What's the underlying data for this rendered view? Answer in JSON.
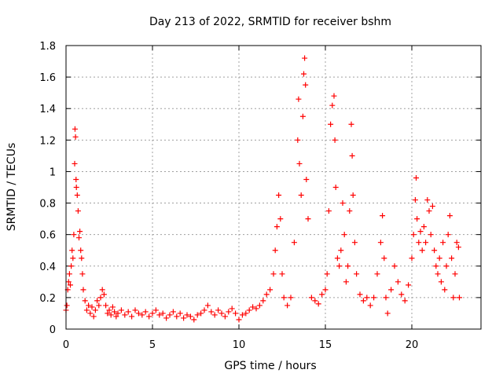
{
  "chart_data": {
    "type": "scatter",
    "title": "Day 213 of 2022, SRMTID for receiver bshm",
    "xlabel": "GPS time / hours",
    "ylabel": "SRMTID / TECUs",
    "xlim": [
      0,
      24
    ],
    "ylim": [
      0,
      1.8
    ],
    "x_ticks": [
      "0",
      "5",
      "10",
      "15",
      "20"
    ],
    "y_ticks": [
      "0",
      "0.2",
      "0.4",
      "0.6",
      "0.8",
      "1",
      "1.2",
      "1.4",
      "1.6",
      "1.8"
    ],
    "grid": true,
    "marker": "plus",
    "series": [
      {
        "color": "#ff0000",
        "points": [
          [
            0.0,
            0.12
          ],
          [
            0.05,
            0.15
          ],
          [
            0.1,
            0.25
          ],
          [
            0.15,
            0.3
          ],
          [
            0.2,
            0.35
          ],
          [
            0.25,
            0.28
          ],
          [
            0.3,
            0.4
          ],
          [
            0.35,
            0.5
          ],
          [
            0.4,
            0.45
          ],
          [
            0.45,
            0.6
          ],
          [
            0.5,
            1.05
          ],
          [
            0.52,
            1.27
          ],
          [
            0.55,
            1.22
          ],
          [
            0.58,
            0.95
          ],
          [
            0.6,
            0.9
          ],
          [
            0.65,
            0.85
          ],
          [
            0.7,
            0.75
          ],
          [
            0.75,
            0.58
          ],
          [
            0.8,
            0.62
          ],
          [
            0.85,
            0.5
          ],
          [
            0.9,
            0.45
          ],
          [
            0.95,
            0.35
          ],
          [
            1.0,
            0.25
          ],
          [
            1.1,
            0.18
          ],
          [
            1.2,
            0.12
          ],
          [
            1.3,
            0.15
          ],
          [
            1.4,
            0.1
          ],
          [
            1.5,
            0.14
          ],
          [
            1.6,
            0.08
          ],
          [
            1.7,
            0.12
          ],
          [
            1.8,
            0.18
          ],
          [
            1.9,
            0.15
          ],
          [
            2.0,
            0.2
          ],
          [
            2.1,
            0.25
          ],
          [
            2.2,
            0.22
          ],
          [
            2.3,
            0.15
          ],
          [
            2.4,
            0.1
          ],
          [
            2.5,
            0.12
          ],
          [
            2.6,
            0.09
          ],
          [
            2.7,
            0.14
          ],
          [
            2.8,
            0.11
          ],
          [
            2.9,
            0.08
          ],
          [
            3.0,
            0.1
          ],
          [
            3.2,
            0.12
          ],
          [
            3.4,
            0.09
          ],
          [
            3.6,
            0.11
          ],
          [
            3.8,
            0.08
          ],
          [
            4.0,
            0.12
          ],
          [
            4.2,
            0.1
          ],
          [
            4.4,
            0.09
          ],
          [
            4.6,
            0.11
          ],
          [
            4.8,
            0.08
          ],
          [
            5.0,
            0.1
          ],
          [
            5.2,
            0.12
          ],
          [
            5.4,
            0.09
          ],
          [
            5.6,
            0.1
          ],
          [
            5.8,
            0.07
          ],
          [
            6.0,
            0.09
          ],
          [
            6.2,
            0.11
          ],
          [
            6.4,
            0.08
          ],
          [
            6.6,
            0.1
          ],
          [
            6.8,
            0.07
          ],
          [
            7.0,
            0.09
          ],
          [
            7.2,
            0.08
          ],
          [
            7.4,
            0.06
          ],
          [
            7.6,
            0.09
          ],
          [
            7.8,
            0.1
          ],
          [
            8.0,
            0.12
          ],
          [
            8.2,
            0.15
          ],
          [
            8.4,
            0.11
          ],
          [
            8.6,
            0.09
          ],
          [
            8.8,
            0.12
          ],
          [
            9.0,
            0.1
          ],
          [
            9.2,
            0.08
          ],
          [
            9.4,
            0.11
          ],
          [
            9.6,
            0.13
          ],
          [
            9.8,
            0.1
          ],
          [
            10.0,
            0.06
          ],
          [
            10.2,
            0.09
          ],
          [
            10.4,
            0.1
          ],
          [
            10.6,
            0.12
          ],
          [
            10.8,
            0.14
          ],
          [
            11.0,
            0.13
          ],
          [
            11.2,
            0.15
          ],
          [
            11.4,
            0.18
          ],
          [
            11.6,
            0.22
          ],
          [
            11.8,
            0.25
          ],
          [
            12.0,
            0.35
          ],
          [
            12.1,
            0.5
          ],
          [
            12.2,
            0.65
          ],
          [
            12.3,
            0.85
          ],
          [
            12.4,
            0.7
          ],
          [
            12.5,
            0.35
          ],
          [
            12.6,
            0.2
          ],
          [
            12.8,
            0.15
          ],
          [
            13.0,
            0.2
          ],
          [
            13.2,
            0.55
          ],
          [
            13.4,
            1.2
          ],
          [
            13.45,
            1.46
          ],
          [
            13.5,
            1.05
          ],
          [
            13.6,
            0.85
          ],
          [
            13.7,
            1.35
          ],
          [
            13.75,
            1.62
          ],
          [
            13.8,
            1.72
          ],
          [
            13.85,
            1.55
          ],
          [
            13.9,
            0.95
          ],
          [
            14.0,
            0.7
          ],
          [
            14.2,
            0.2
          ],
          [
            14.4,
            0.18
          ],
          [
            14.6,
            0.16
          ],
          [
            14.8,
            0.22
          ],
          [
            15.0,
            0.25
          ],
          [
            15.1,
            0.35
          ],
          [
            15.2,
            0.75
          ],
          [
            15.3,
            1.3
          ],
          [
            15.4,
            1.42
          ],
          [
            15.5,
            1.48
          ],
          [
            15.55,
            1.2
          ],
          [
            15.6,
            0.9
          ],
          [
            15.7,
            0.45
          ],
          [
            15.8,
            0.4
          ],
          [
            15.9,
            0.5
          ],
          [
            16.0,
            0.8
          ],
          [
            16.1,
            0.6
          ],
          [
            16.2,
            0.3
          ],
          [
            16.3,
            0.4
          ],
          [
            16.4,
            0.75
          ],
          [
            16.5,
            1.3
          ],
          [
            16.55,
            1.1
          ],
          [
            16.6,
            0.85
          ],
          [
            16.7,
            0.55
          ],
          [
            16.8,
            0.35
          ],
          [
            17.0,
            0.22
          ],
          [
            17.2,
            0.18
          ],
          [
            17.4,
            0.2
          ],
          [
            17.6,
            0.15
          ],
          [
            17.8,
            0.2
          ],
          [
            18.0,
            0.35
          ],
          [
            18.2,
            0.55
          ],
          [
            18.3,
            0.72
          ],
          [
            18.4,
            0.45
          ],
          [
            18.5,
            0.2
          ],
          [
            18.6,
            0.1
          ],
          [
            18.8,
            0.25
          ],
          [
            19.0,
            0.4
          ],
          [
            19.2,
            0.3
          ],
          [
            19.4,
            0.22
          ],
          [
            19.6,
            0.18
          ],
          [
            19.8,
            0.28
          ],
          [
            20.0,
            0.45
          ],
          [
            20.1,
            0.6
          ],
          [
            20.2,
            0.82
          ],
          [
            20.25,
            0.96
          ],
          [
            20.3,
            0.7
          ],
          [
            20.4,
            0.55
          ],
          [
            20.5,
            0.62
          ],
          [
            20.6,
            0.5
          ],
          [
            20.7,
            0.65
          ],
          [
            20.8,
            0.55
          ],
          [
            20.9,
            0.82
          ],
          [
            21.0,
            0.75
          ],
          [
            21.1,
            0.6
          ],
          [
            21.2,
            0.78
          ],
          [
            21.3,
            0.5
          ],
          [
            21.4,
            0.4
          ],
          [
            21.5,
            0.35
          ],
          [
            21.6,
            0.45
          ],
          [
            21.7,
            0.3
          ],
          [
            21.8,
            0.55
          ],
          [
            21.9,
            0.25
          ],
          [
            22.0,
            0.4
          ],
          [
            22.1,
            0.6
          ],
          [
            22.2,
            0.72
          ],
          [
            22.3,
            0.45
          ],
          [
            22.4,
            0.2
          ],
          [
            22.5,
            0.35
          ],
          [
            22.6,
            0.55
          ],
          [
            22.7,
            0.52
          ],
          [
            22.75,
            0.2
          ]
        ]
      }
    ]
  }
}
